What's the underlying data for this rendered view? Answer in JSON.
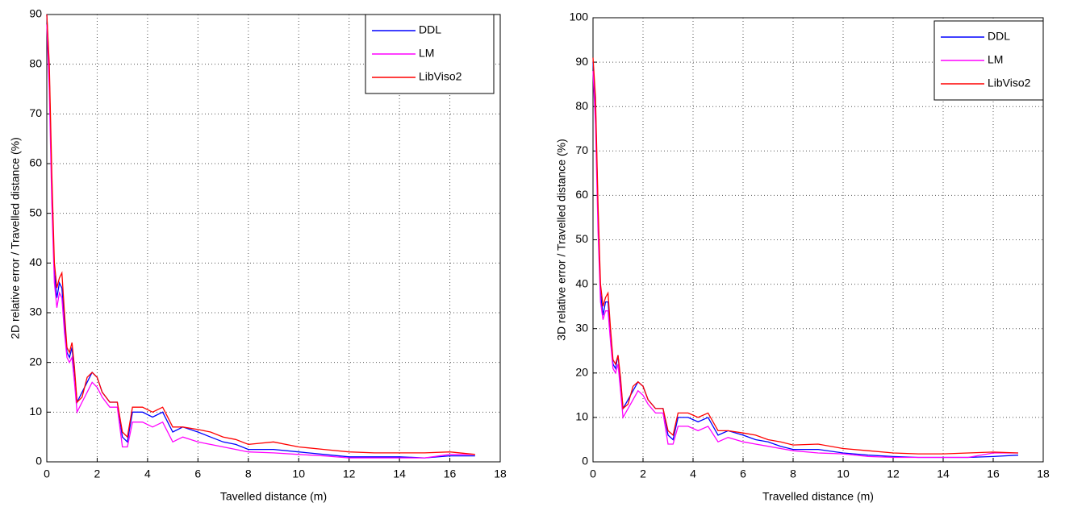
{
  "chart_data": [
    {
      "type": "line",
      "x_label": "Tavelled distance (m)",
      "y_label": "2D relative error / Travelled distance (%)",
      "x": [
        0,
        0.1,
        0.2,
        0.3,
        0.4,
        0.5,
        0.6,
        0.7,
        0.8,
        0.9,
        1.0,
        1.1,
        1.2,
        1.4,
        1.6,
        1.8,
        2.0,
        2.2,
        2.5,
        2.8,
        3.0,
        3.2,
        3.4,
        3.8,
        4.2,
        4.6,
        5.0,
        5.4,
        6,
        6.5,
        7,
        7.5,
        8,
        9,
        10,
        11,
        12,
        13,
        14,
        15,
        16,
        17
      ],
      "series": [
        {
          "name": "DDL",
          "color": "#0000ff",
          "values": [
            90,
            78,
            55,
            38,
            33,
            36,
            35,
            28,
            22,
            21,
            23,
            18,
            12,
            14,
            16,
            18,
            17,
            14,
            12,
            12,
            5,
            4,
            10,
            10,
            9,
            10,
            6,
            7,
            6,
            5,
            4,
            3.5,
            2.5,
            2.5,
            2,
            1.5,
            1,
            1,
            1,
            0.8,
            1.2,
            1.2
          ]
        },
        {
          "name": "LM",
          "color": "#ff00ff",
          "values": [
            88,
            75,
            52,
            36,
            31,
            34,
            33,
            26,
            21,
            20,
            21,
            16,
            10,
            12,
            14,
            16,
            15,
            13,
            11,
            11,
            3,
            3,
            8,
            8,
            7,
            8,
            4,
            5,
            4,
            3.5,
            3,
            2.5,
            2,
            1.8,
            1.5,
            1.2,
            0.8,
            0.8,
            0.8,
            0.8,
            1.5,
            1.5
          ]
        },
        {
          "name": "LibViso2",
          "color": "#ff0000",
          "values": [
            90,
            80,
            58,
            40,
            35,
            37,
            38,
            30,
            23,
            22,
            24,
            19,
            12,
            13,
            17,
            18,
            17,
            14,
            12,
            12,
            6,
            5,
            11,
            11,
            10,
            11,
            7,
            7,
            6.5,
            6,
            5,
            4.5,
            3.5,
            4,
            3,
            2.5,
            2,
            1.8,
            1.8,
            1.8,
            2,
            1.5
          ]
        }
      ],
      "xlim": [
        0,
        18
      ],
      "xticks": [
        0,
        2,
        4,
        6,
        8,
        10,
        12,
        14,
        16,
        18
      ],
      "ylim": [
        0,
        90
      ],
      "yticks": [
        0,
        10,
        20,
        30,
        40,
        50,
        60,
        70,
        80,
        90
      ],
      "grid": true,
      "legend": "upper right"
    },
    {
      "type": "line",
      "x_label": "Travelled distance (m)",
      "y_label": "3D relative error / Travelled distance (%)",
      "x": [
        0,
        0.1,
        0.2,
        0.3,
        0.4,
        0.5,
        0.6,
        0.7,
        0.8,
        0.9,
        1.0,
        1.1,
        1.2,
        1.4,
        1.6,
        1.8,
        2.0,
        2.2,
        2.5,
        2.8,
        3.0,
        3.2,
        3.4,
        3.8,
        4.2,
        4.6,
        5.0,
        5.4,
        6,
        6.5,
        7,
        7.5,
        8,
        9,
        10,
        11,
        12,
        13,
        14,
        15,
        16,
        17
      ],
      "series": [
        {
          "name": "DDL",
          "color": "#0000ff",
          "values": [
            90,
            80,
            56,
            38,
            33,
            36,
            36,
            29,
            22,
            21,
            24,
            18,
            12,
            14,
            16,
            18,
            17,
            14,
            12,
            12,
            6,
            5,
            10,
            10,
            9,
            10,
            6,
            7,
            6,
            5,
            4.5,
            3.5,
            2.8,
            2.8,
            2,
            1.5,
            1.2,
            1,
            1,
            1,
            1.2,
            1.5
          ]
        },
        {
          "name": "LM",
          "color": "#ff00ff",
          "values": [
            88,
            76,
            52,
            36,
            32,
            34,
            34,
            27,
            21,
            20,
            22,
            16,
            10,
            12,
            14,
            16,
            15,
            13,
            11,
            11,
            4,
            4,
            8,
            8,
            7,
            8,
            4.5,
            5.5,
            4.5,
            4,
            3.5,
            3,
            2.5,
            2,
            1.8,
            1.2,
            1,
            1,
            1,
            1,
            2,
            2
          ]
        },
        {
          "name": "LibViso2",
          "color": "#ff0000",
          "values": [
            91,
            82,
            58,
            40,
            35,
            37,
            38,
            30,
            23,
            22,
            24,
            19,
            12,
            13,
            17,
            18,
            17,
            14,
            12,
            12,
            7,
            6,
            11,
            11,
            10,
            11,
            7,
            7,
            6.5,
            6,
            5,
            4.5,
            3.8,
            4,
            3,
            2.5,
            2,
            1.8,
            1.8,
            2,
            2.2,
            2
          ]
        }
      ],
      "xlim": [
        0,
        18
      ],
      "xticks": [
        0,
        2,
        4,
        6,
        8,
        10,
        12,
        14,
        16,
        18
      ],
      "ylim": [
        0,
        100
      ],
      "yticks": [
        0,
        10,
        20,
        30,
        40,
        50,
        60,
        70,
        80,
        90,
        100
      ],
      "grid": true,
      "legend": "upper right"
    }
  ]
}
